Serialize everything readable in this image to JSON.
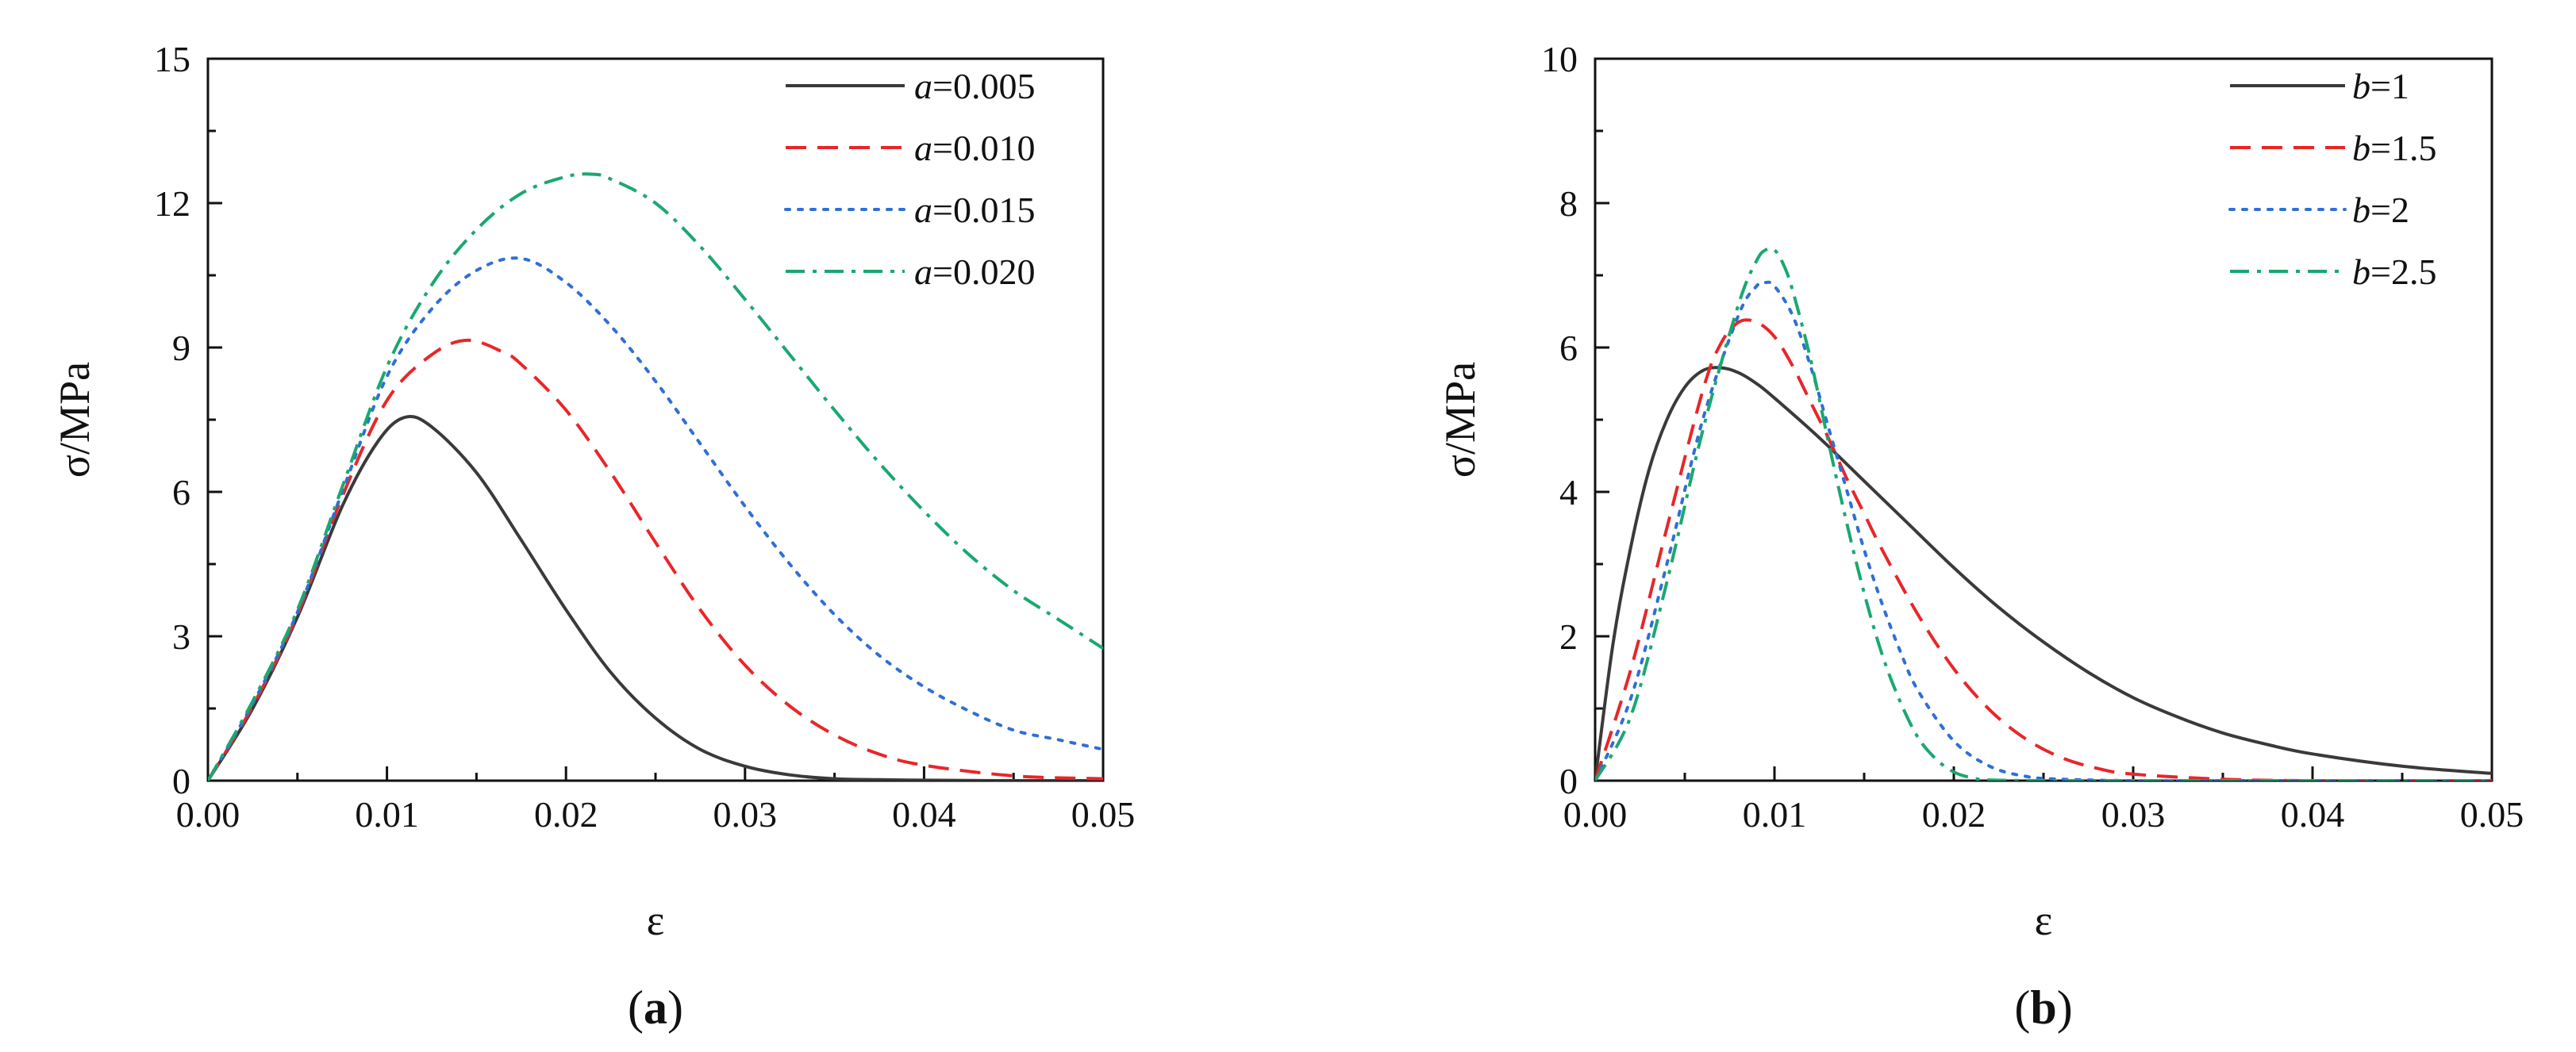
{
  "chart_data": [
    {
      "id": "a",
      "type": "line",
      "panel_label": "a",
      "xlabel": "ε",
      "ylabel": "σ/MPa",
      "xlim": [
        0,
        0.05
      ],
      "ylim": [
        0,
        15
      ],
      "xticks": [
        0,
        0.01,
        0.02,
        0.03,
        0.04,
        0.05
      ],
      "xtick_labels": [
        "0.00",
        "0.01",
        "0.02",
        "0.03",
        "0.04",
        "0.05"
      ],
      "yticks": [
        0,
        3,
        6,
        9,
        12,
        15
      ],
      "ytick_labels": [
        "0",
        "3",
        "6",
        "9",
        "12",
        "15"
      ],
      "legend_position": "top-right",
      "series": [
        {
          "name": "a=0.005",
          "param": "a",
          "value_label": "=0.005",
          "color": "#3a3a3a",
          "dash": "solid",
          "x": [
            0,
            0.0025,
            0.005,
            0.0075,
            0.0095,
            0.011,
            0.0125,
            0.015,
            0.0175,
            0.02,
            0.0225,
            0.025,
            0.0275,
            0.03,
            0.0325,
            0.035,
            0.0375,
            0.04,
            0.045,
            0.05
          ],
          "y": [
            0,
            1.5,
            3.4,
            5.7,
            7.05,
            7.55,
            7.35,
            6.4,
            5.0,
            3.55,
            2.25,
            1.3,
            0.65,
            0.3,
            0.12,
            0.04,
            0.02,
            0.01,
            0.0,
            0.0
          ]
        },
        {
          "name": "a=0.010",
          "param": "a",
          "value_label": "=0.010",
          "color": "#e8262a",
          "dash": "dashed",
          "x": [
            0,
            0.0025,
            0.005,
            0.0075,
            0.01,
            0.0125,
            0.0145,
            0.0165,
            0.0175,
            0.02,
            0.0225,
            0.025,
            0.0275,
            0.03,
            0.0325,
            0.035,
            0.0375,
            0.04,
            0.045,
            0.05
          ],
          "y": [
            0,
            1.55,
            3.45,
            5.9,
            7.9,
            8.85,
            9.15,
            8.9,
            8.65,
            7.7,
            6.4,
            4.95,
            3.55,
            2.4,
            1.55,
            0.95,
            0.55,
            0.32,
            0.1,
            0.04
          ]
        },
        {
          "name": "a=0.015",
          "param": "a",
          "value_label": "=0.015",
          "color": "#2f6fd6",
          "dash": "dotted",
          "x": [
            0,
            0.0025,
            0.005,
            0.0075,
            0.01,
            0.0125,
            0.015,
            0.0175,
            0.02,
            0.0225,
            0.025,
            0.0275,
            0.03,
            0.0325,
            0.035,
            0.0375,
            0.04,
            0.0425,
            0.045,
            0.0475,
            0.05
          ],
          "y": [
            0,
            1.6,
            3.5,
            6.0,
            8.4,
            9.8,
            10.6,
            10.85,
            10.35,
            9.45,
            8.3,
            7.0,
            5.7,
            4.5,
            3.45,
            2.6,
            1.95,
            1.45,
            1.05,
            0.85,
            0.65
          ]
        },
        {
          "name": "a=0.020",
          "param": "a",
          "value_label": "=0.020",
          "color": "#1aa870",
          "dash": "dashdot",
          "x": [
            0,
            0.0025,
            0.005,
            0.0075,
            0.01,
            0.0125,
            0.015,
            0.0175,
            0.02,
            0.0215,
            0.0225,
            0.025,
            0.0275,
            0.03,
            0.0325,
            0.035,
            0.0375,
            0.04,
            0.0425,
            0.045,
            0.0475,
            0.05
          ],
          "y": [
            0,
            1.65,
            3.55,
            6.1,
            8.6,
            10.3,
            11.45,
            12.2,
            12.55,
            12.6,
            12.5,
            12.0,
            11.1,
            10.0,
            8.85,
            7.7,
            6.6,
            5.6,
            4.7,
            3.95,
            3.35,
            2.75
          ]
        }
      ]
    },
    {
      "id": "b",
      "type": "line",
      "panel_label": "b",
      "xlabel": "ε",
      "ylabel": "σ/MPa",
      "xlim": [
        0,
        0.05
      ],
      "ylim": [
        0,
        10
      ],
      "xticks": [
        0,
        0.01,
        0.02,
        0.03,
        0.04,
        0.05
      ],
      "xtick_labels": [
        "0.00",
        "0.01",
        "0.02",
        "0.03",
        "0.04",
        "0.05"
      ],
      "yticks": [
        0,
        2,
        4,
        6,
        8,
        10
      ],
      "ytick_labels": [
        "0",
        "2",
        "4",
        "6",
        "8",
        "10"
      ],
      "legend_position": "top-right",
      "series": [
        {
          "name": "b=1",
          "param": "b",
          "value_label": "=1",
          "color": "#3a3a3a",
          "dash": "solid",
          "x": [
            0,
            0.001,
            0.002,
            0.003,
            0.004,
            0.005,
            0.006,
            0.007,
            0.008,
            0.009,
            0.01,
            0.0125,
            0.015,
            0.0175,
            0.02,
            0.0225,
            0.025,
            0.0275,
            0.03,
            0.0325,
            0.035,
            0.0375,
            0.04,
            0.045,
            0.05
          ],
          "y": [
            0,
            1.9,
            3.25,
            4.3,
            5.0,
            5.45,
            5.68,
            5.72,
            5.65,
            5.5,
            5.3,
            4.75,
            4.15,
            3.55,
            2.95,
            2.4,
            1.92,
            1.5,
            1.15,
            0.88,
            0.66,
            0.5,
            0.37,
            0.2,
            0.1
          ]
        },
        {
          "name": "b=1.5",
          "param": "b",
          "value_label": "=1.5",
          "color": "#e8262a",
          "dash": "dashed",
          "x": [
            0,
            0.002,
            0.004,
            0.006,
            0.007,
            0.008,
            0.009,
            0.01,
            0.011,
            0.012,
            0.013,
            0.014,
            0.015,
            0.016,
            0.018,
            0.02,
            0.022,
            0.024,
            0.026,
            0.028,
            0.03,
            0.035,
            0.04,
            0.05
          ],
          "y": [
            0,
            1.55,
            3.5,
            5.4,
            6.05,
            6.35,
            6.35,
            6.15,
            5.75,
            5.25,
            4.75,
            4.2,
            3.7,
            3.2,
            2.3,
            1.55,
            0.98,
            0.58,
            0.32,
            0.17,
            0.09,
            0.02,
            0.0,
            0.0
          ]
        },
        {
          "name": "b=2",
          "param": "b",
          "value_label": "=2",
          "color": "#2f6fd6",
          "dash": "dotted",
          "x": [
            0,
            0.002,
            0.004,
            0.006,
            0.008,
            0.009,
            0.0095,
            0.01,
            0.011,
            0.012,
            0.013,
            0.014,
            0.015,
            0.016,
            0.017,
            0.018,
            0.02,
            0.022,
            0.024,
            0.026,
            0.03,
            0.035,
            0.05
          ],
          "y": [
            0,
            1.15,
            3.0,
            5.0,
            6.45,
            6.85,
            6.9,
            6.85,
            6.45,
            5.75,
            4.9,
            4.05,
            3.2,
            2.45,
            1.8,
            1.25,
            0.55,
            0.2,
            0.06,
            0.02,
            0.0,
            0.0,
            0.0
          ]
        },
        {
          "name": "b=2.5",
          "param": "b",
          "value_label": "=2.5",
          "color": "#1aa870",
          "dash": "dashdot",
          "x": [
            0,
            0.002,
            0.004,
            0.006,
            0.008,
            0.009,
            0.0095,
            0.01,
            0.0105,
            0.011,
            0.012,
            0.013,
            0.014,
            0.015,
            0.016,
            0.017,
            0.018,
            0.019,
            0.02,
            0.021,
            0.022,
            0.025,
            0.03,
            0.05
          ],
          "y": [
            0,
            0.9,
            2.75,
            4.85,
            6.6,
            7.2,
            7.35,
            7.35,
            7.15,
            6.8,
            5.85,
            4.7,
            3.6,
            2.6,
            1.75,
            1.1,
            0.6,
            0.3,
            0.12,
            0.04,
            0.01,
            0.0,
            0.0,
            0.0
          ]
        }
      ]
    }
  ]
}
